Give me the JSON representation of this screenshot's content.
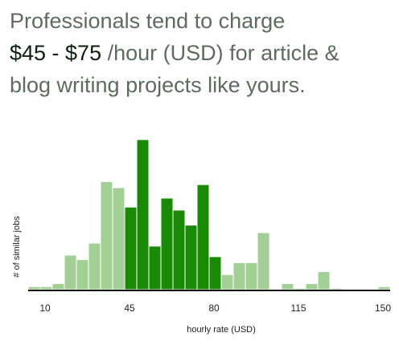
{
  "headline": {
    "line1": "Professionals tend to charge",
    "range": "$45 - $75",
    "line2_rest": " /hour (USD) for article &",
    "line3": "blog writing projects like yours."
  },
  "colors": {
    "highlight": "#1a8a06",
    "normal": "#a2cf96",
    "text_muted": "#5e6b5e",
    "text_dark": "#0d1f0d"
  },
  "chart_data": {
    "type": "bar",
    "title": "",
    "xlabel": "hourly rate (USD)",
    "ylabel": "# of similar jobs",
    "x_ticks": [
      10,
      45,
      80,
      115,
      150
    ],
    "xlim": [
      3,
      153
    ],
    "ylim": [
      0,
      100
    ],
    "highlight_range": [
      45,
      75
    ],
    "bins": [
      {
        "x0": 3,
        "x1": 8,
        "value": 2
      },
      {
        "x0": 8,
        "x1": 13,
        "value": 2
      },
      {
        "x0": 13,
        "x1": 18,
        "value": 4
      },
      {
        "x0": 18,
        "x1": 23,
        "value": 23
      },
      {
        "x0": 23,
        "x1": 28,
        "value": 20
      },
      {
        "x0": 28,
        "x1": 33,
        "value": 31
      },
      {
        "x0": 33,
        "x1": 38,
        "value": 72
      },
      {
        "x0": 38,
        "x1": 43,
        "value": 68
      },
      {
        "x0": 43,
        "x1": 48,
        "value": 55
      },
      {
        "x0": 48,
        "x1": 53,
        "value": 100
      },
      {
        "x0": 53,
        "x1": 58,
        "value": 29
      },
      {
        "x0": 58,
        "x1": 63,
        "value": 61
      },
      {
        "x0": 63,
        "x1": 68,
        "value": 53
      },
      {
        "x0": 68,
        "x1": 73,
        "value": 43
      },
      {
        "x0": 73,
        "x1": 78,
        "value": 70
      },
      {
        "x0": 78,
        "x1": 83,
        "value": 22
      },
      {
        "x0": 83,
        "x1": 88,
        "value": 10
      },
      {
        "x0": 88,
        "x1": 93,
        "value": 18
      },
      {
        "x0": 93,
        "x1": 98,
        "value": 18
      },
      {
        "x0": 98,
        "x1": 103,
        "value": 38
      },
      {
        "x0": 103,
        "x1": 108,
        "value": 0
      },
      {
        "x0": 108,
        "x1": 113,
        "value": 4
      },
      {
        "x0": 113,
        "x1": 118,
        "value": 1
      },
      {
        "x0": 118,
        "x1": 123,
        "value": 4
      },
      {
        "x0": 123,
        "x1": 128,
        "value": 12
      },
      {
        "x0": 128,
        "x1": 133,
        "value": 1
      },
      {
        "x0": 133,
        "x1": 138,
        "value": 0
      },
      {
        "x0": 138,
        "x1": 143,
        "value": 0
      },
      {
        "x0": 143,
        "x1": 148,
        "value": 0
      },
      {
        "x0": 148,
        "x1": 153,
        "value": 2
      }
    ]
  }
}
